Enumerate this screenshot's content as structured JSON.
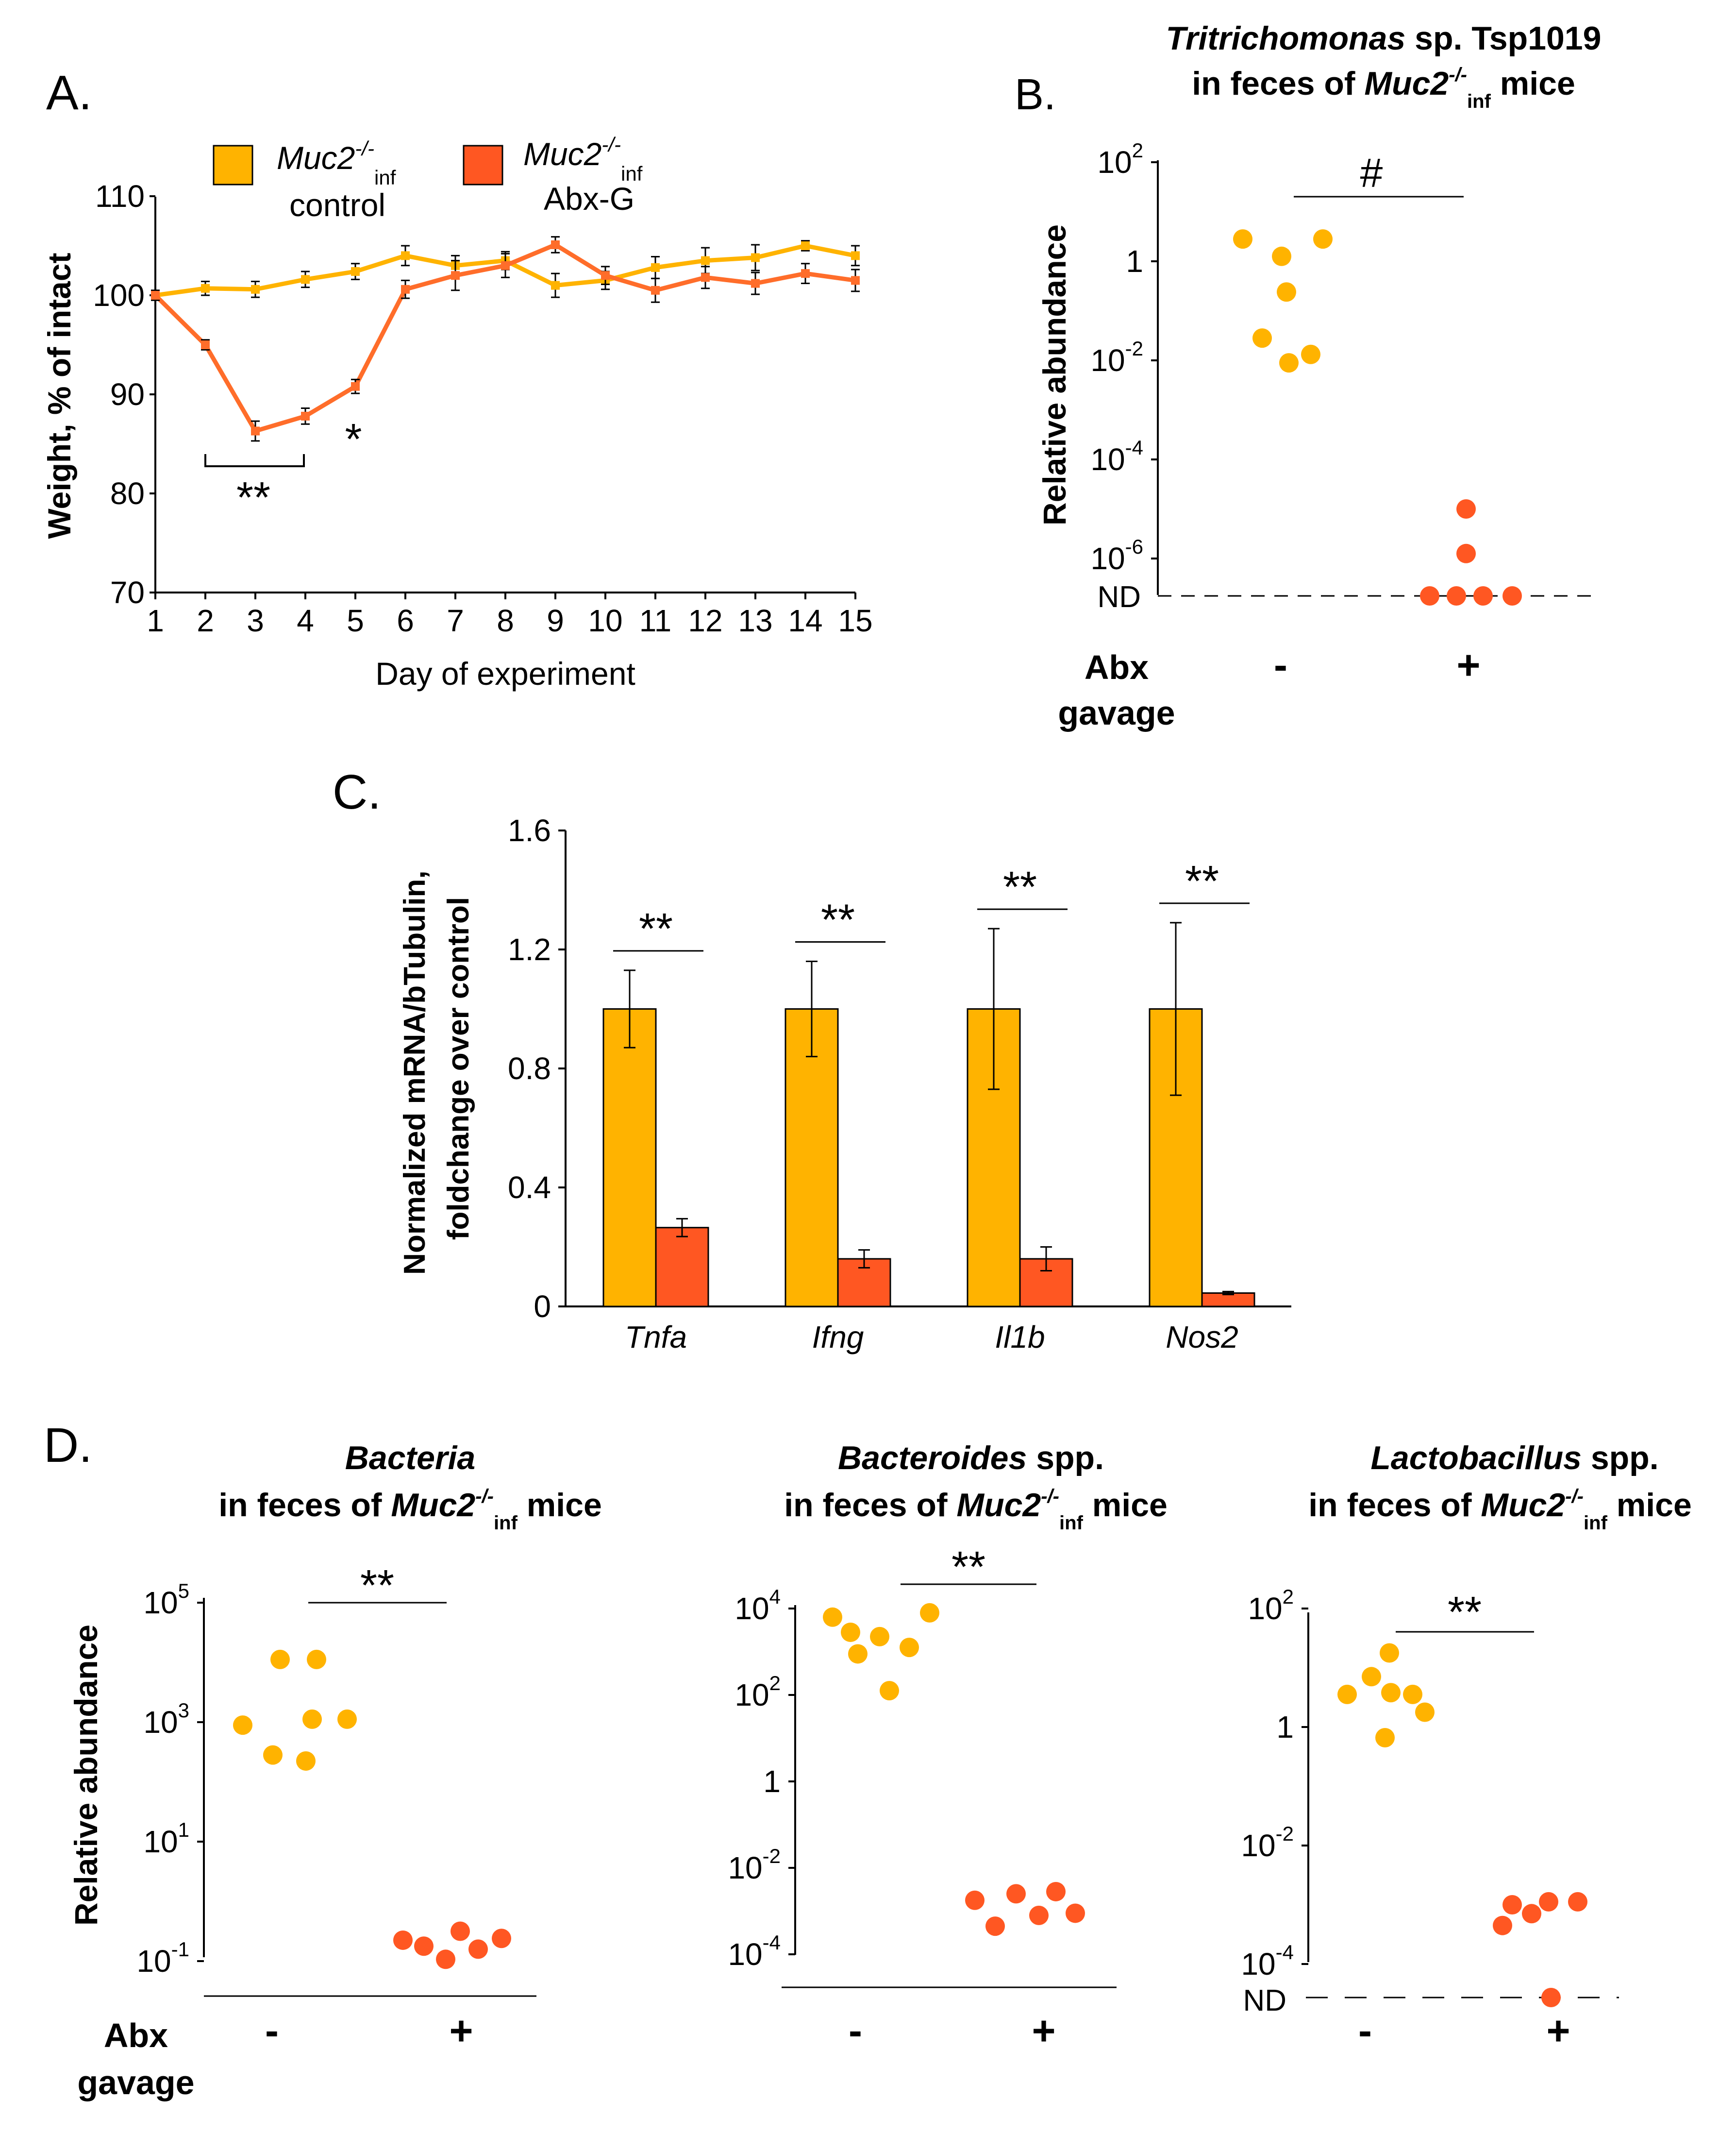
{
  "colors": {
    "control": "#FFB300",
    "abx": "#FF5722",
    "line_control": "#FFB300",
    "line_abx": "#FF6D2A",
    "axis": "#000000"
  },
  "panels": {
    "a": {
      "letter": "A."
    },
    "b": {
      "letter": "B.",
      "title_italic": "Tritrichomonas",
      "title_rest": " sp. Tsp1019",
      "title_line2_pre": "in feces of ",
      "title_line2_gene": "Muc2",
      "title_line2_sup": "-/-",
      "title_line2_sub": "inf",
      "title_line2_post": " mice"
    },
    "c": {
      "letter": "C."
    },
    "d": {
      "letter": "D.",
      "bacteria": {
        "title_italic": "Bacteria",
        "title_rest": "",
        "title_line2_pre": "in feces of ",
        "title_line2_gene": "Muc2",
        "title_line2_sup": "-/-",
        "title_line2_sub": "inf",
        "title_line2_post": " mice"
      },
      "bacteroides": {
        "title_italic": "Bacteroides",
        "title_rest": " spp.",
        "title_line2_pre": "in feces of ",
        "title_line2_gene": "Muc2",
        "title_line2_sup": "-/-",
        "title_line2_sub": "inf",
        "title_line2_post": " mice"
      },
      "lactobacillus": {
        "title_italic": "Lactobacillus",
        "title_rest": " spp.",
        "title_line2_pre": "in feces of ",
        "title_line2_gene": "Muc2",
        "title_line2_sup": "-/-",
        "title_line2_sub": "inf",
        "title_line2_post": " mice"
      }
    }
  },
  "legend": {
    "control": {
      "gene": "Muc2",
      "sup": "-/-",
      "sub": "inf",
      "label": "control"
    },
    "abx": {
      "gene": "Muc2",
      "sup": "-/-",
      "sub": "inf",
      "label": "Abx-G"
    }
  },
  "xgroup": {
    "abx_line1": "Abx",
    "abx_line2": "gavage",
    "minus": "-",
    "plus": "+"
  },
  "chart_data": [
    {
      "id": "A",
      "type": "line",
      "xlabel": "Day of experiment",
      "ylabel": "Weight, % of intact",
      "ylim": [
        70,
        110
      ],
      "yticks": [
        70,
        80,
        90,
        100,
        110
      ],
      "x": [
        1,
        2,
        3,
        4,
        5,
        6,
        7,
        8,
        9,
        10,
        11,
        12,
        13,
        14,
        15
      ],
      "series": [
        {
          "name": "Muc2-/-inf control",
          "values": [
            100,
            100.7,
            100.6,
            101.6,
            102.4,
            104,
            103,
            103.5,
            101,
            101.5,
            102.8,
            103.5,
            103.8,
            105,
            104
          ],
          "err": [
            0.5,
            0.7,
            0.8,
            0.8,
            0.8,
            1.0,
            1.0,
            0.9,
            1.2,
            0.9,
            1.1,
            1.3,
            1.3,
            0.5,
            1.0
          ]
        },
        {
          "name": "Muc2-/-inf Abx-G",
          "values": [
            100,
            95,
            86.3,
            87.8,
            90.8,
            100.6,
            102,
            103,
            105.1,
            102,
            100.5,
            101.8,
            101.2,
            102.2,
            101.5
          ],
          "err": [
            0.3,
            0.5,
            1.0,
            0.8,
            0.7,
            0.9,
            1.5,
            1.2,
            0.8,
            0.9,
            1.2,
            1.1,
            1.1,
            1.0,
            1.1
          ]
        }
      ],
      "annotations": [
        {
          "text": "**",
          "x_from": 2,
          "x_to": 4
        },
        {
          "text": "*",
          "x": 5
        }
      ]
    },
    {
      "id": "B",
      "type": "scatter",
      "ylabel": "Relative abundance",
      "yticks": [
        {
          "base": "10",
          "exp": "2"
        },
        {
          "base": "1",
          "exp": ""
        },
        {
          "base": "10",
          "exp": "-2"
        },
        {
          "base": "10",
          "exp": "-4"
        },
        {
          "base": "10",
          "exp": "-6"
        }
      ],
      "nd_label": "ND",
      "groups": [
        {
          "name": "-",
          "log10_values": [
            0.45,
            0.1,
            0.45,
            -0.62,
            -1.88,
            -1.55,
            -2.05
          ]
        },
        {
          "name": "+",
          "log10_values": [
            -5.0,
            -5.9,
            "ND",
            "ND",
            "ND",
            "ND"
          ]
        }
      ],
      "annotations": [
        {
          "text": "#"
        }
      ]
    },
    {
      "id": "C",
      "type": "bar",
      "ylabel_line1": "Normalized mRNA/bTubulin,",
      "ylabel_line2": "foldchange over control",
      "ylim": [
        0,
        1.6
      ],
      "yticks": [
        "0",
        "0.4",
        "0.8",
        "1.2",
        "1.6"
      ],
      "categories": [
        "Tnfa",
        "Ifng",
        "Il1b",
        "Nos2"
      ],
      "series": [
        {
          "name": "control",
          "values": [
            1.0,
            1.0,
            1.0,
            1.0
          ],
          "err": [
            0.13,
            0.16,
            0.27,
            0.29
          ]
        },
        {
          "name": "Abx-G",
          "values": [
            0.265,
            0.16,
            0.16,
            0.045
          ],
          "err": [
            0.03,
            0.03,
            0.04,
            0.005
          ]
        }
      ],
      "annotations": [
        "**",
        "**",
        "**",
        "**"
      ]
    },
    {
      "id": "D1",
      "type": "scatter",
      "ylabel": "Relative abundance",
      "yticks": [
        {
          "base": "10",
          "exp": "5"
        },
        {
          "base": "10",
          "exp": "3"
        },
        {
          "base": "10",
          "exp": "1"
        },
        {
          "base": "10",
          "exp": "-1"
        }
      ],
      "groups": [
        {
          "name": "-",
          "log10_values": [
            2.95,
            2.45,
            4.05,
            2.35,
            4.05,
            3.05,
            3.05
          ]
        },
        {
          "name": "+",
          "log10_values": [
            -0.65,
            -0.75,
            -0.97,
            -0.5,
            -0.8,
            -0.62
          ]
        }
      ],
      "annotations": [
        {
          "text": "**"
        }
      ]
    },
    {
      "id": "D2",
      "type": "scatter",
      "yticks": [
        {
          "base": "10",
          "exp": "4"
        },
        {
          "base": "10",
          "exp": "2"
        },
        {
          "base": "1",
          "exp": ""
        },
        {
          "base": "10",
          "exp": "-2"
        },
        {
          "base": "10",
          "exp": "-4"
        }
      ],
      "groups": [
        {
          "name": "-",
          "log10_values": [
            3.8,
            3.45,
            2.95,
            3.35,
            2.1,
            3.1,
            3.9
          ]
        },
        {
          "name": "+",
          "log10_values": [
            -2.75,
            -3.35,
            -2.6,
            -3.1,
            -2.55,
            -3.05
          ]
        }
      ],
      "annotations": [
        {
          "text": "**"
        }
      ]
    },
    {
      "id": "D3",
      "type": "scatter",
      "yticks": [
        {
          "base": "10",
          "exp": "2"
        },
        {
          "base": "1",
          "exp": ""
        },
        {
          "base": "10",
          "exp": "-2"
        },
        {
          "base": "10",
          "exp": "-4"
        }
      ],
      "nd_label": "ND",
      "groups": [
        {
          "name": "-",
          "log10_values": [
            0.55,
            0.85,
            0.58,
            -0.18,
            1.25,
            0.55,
            0.25
          ]
        },
        {
          "name": "+",
          "log10_values": [
            -3.35,
            -3.0,
            -3.15,
            -2.95,
            "ND",
            -2.95
          ]
        }
      ],
      "annotations": [
        {
          "text": "**"
        }
      ]
    }
  ]
}
